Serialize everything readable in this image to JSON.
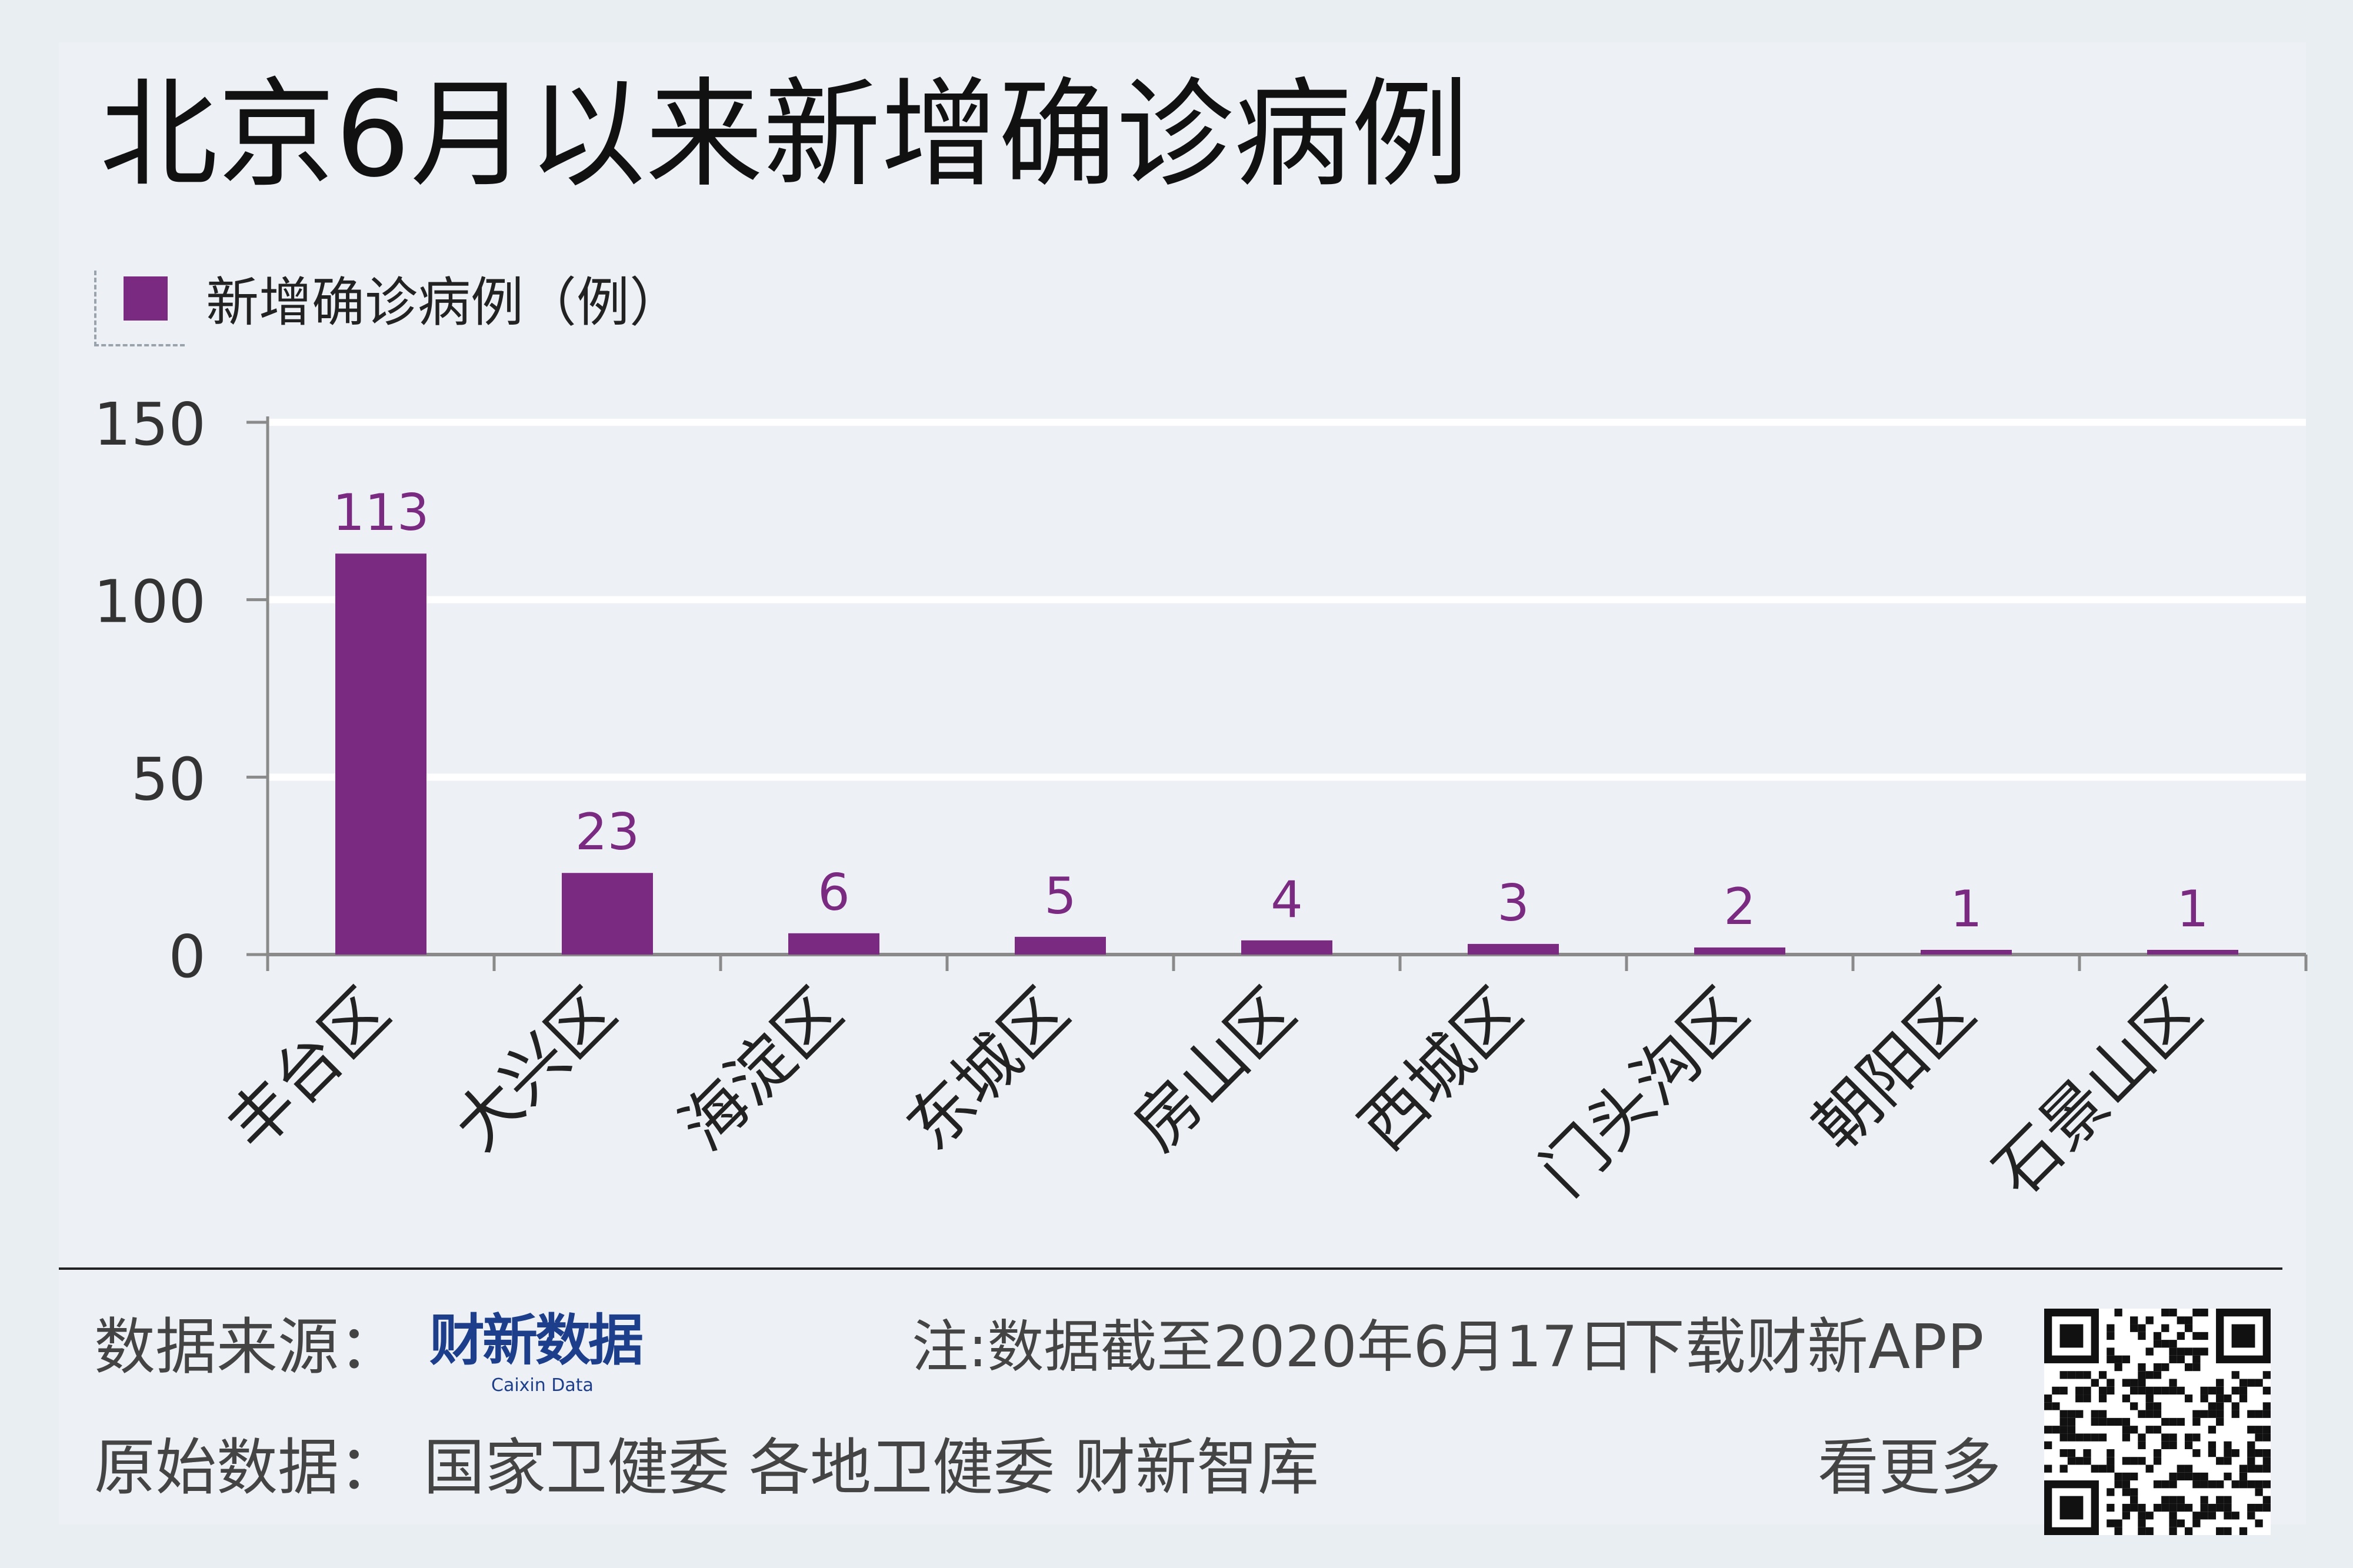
{
  "title": "北京6月以来新增确诊病例",
  "footer": {
    "source_label": "数据来源：",
    "source_logo_cn": "财新数据",
    "source_logo_en": "Caixin Data",
    "note": "注:数据截至2020年6月17日",
    "download": "下载财新APP",
    "more": "看更多",
    "original_label": "原始数据：",
    "original_sources": "国家卫健委  各地卫健委  财新智库"
  },
  "colors": {
    "bar": "#7b2a82",
    "label": "#7b2a82",
    "grid": "#ffffff",
    "axis": "#8a8a8a"
  },
  "chart_data": {
    "type": "bar",
    "legend": "新增确诊病例（例）",
    "legend_position": "top-left",
    "categories": [
      "丰台区",
      "大兴区",
      "海淀区",
      "东城区",
      "房山区",
      "西城区",
      "门头沟区",
      "朝阳区",
      "石景山区"
    ],
    "series": [
      {
        "name": "新增确诊病例（例）",
        "values": [
          113,
          23,
          6,
          5,
          4,
          3,
          2,
          1,
          1
        ]
      }
    ],
    "ylim": [
      0,
      150
    ],
    "yticks": [
      0,
      50,
      100,
      150
    ],
    "grid": true
  }
}
